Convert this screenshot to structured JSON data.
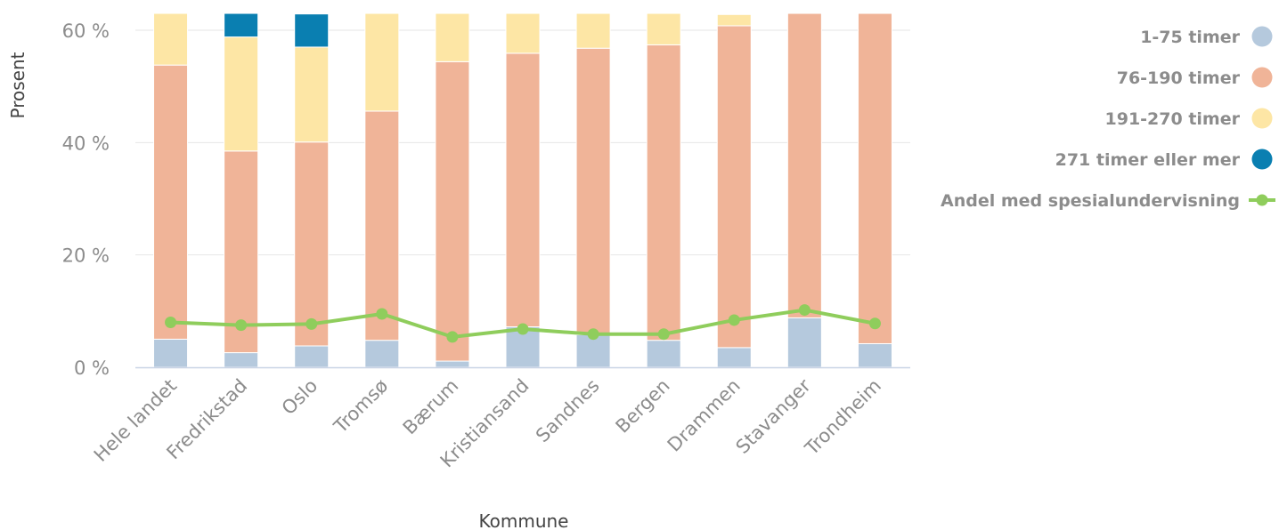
{
  "chart_data": {
    "type": "bar",
    "stacked": true,
    "xlabel": "Kommune",
    "ylabel": "Prosent",
    "ylim": [
      0,
      63
    ],
    "yticks": [
      0,
      20,
      40,
      60
    ],
    "tick_suffix": " %",
    "grid": true,
    "legend_position": "right",
    "categories": [
      "Hele landet",
      "Fredrikstad",
      "Oslo",
      "Tromsø",
      "Bærum",
      "Kristiansand",
      "Sandnes",
      "Bergen",
      "Drammen",
      "Stavanger",
      "Trondheim"
    ],
    "series": [
      {
        "name": "1-75 timer",
        "color": "#b5c9dd",
        "values": [
          5.0,
          2.6,
          3.8,
          4.8,
          1.1,
          7.2,
          5.8,
          4.8,
          3.5,
          8.8,
          4.2
        ]
      },
      {
        "name": "76-190 timer",
        "color": "#f0b498",
        "values": [
          48.8,
          35.9,
          36.3,
          40.8,
          53.3,
          48.7,
          51.0,
          52.6,
          57.3,
          54.2,
          58.8
        ]
      },
      {
        "name": "191-270 timer",
        "color": "#fde6a5",
        "values": [
          9.2,
          20.3,
          16.9,
          17.4,
          8.6,
          7.1,
          6.2,
          5.6,
          2.0,
          0.0,
          0.0
        ]
      },
      {
        "name": "271 timer eller mer",
        "color": "#0a7fb1",
        "values": [
          0.0,
          4.2,
          5.9,
          0.0,
          0.0,
          0.0,
          0.0,
          0.0,
          0.0,
          0.0,
          0.0
        ]
      }
    ],
    "line_series": {
      "name": "Andel med spesialundervisning",
      "color": "#8fcd5c",
      "values": [
        8.0,
        7.5,
        7.7,
        9.5,
        5.4,
        6.8,
        5.9,
        5.9,
        8.4,
        10.2,
        7.8
      ]
    }
  }
}
